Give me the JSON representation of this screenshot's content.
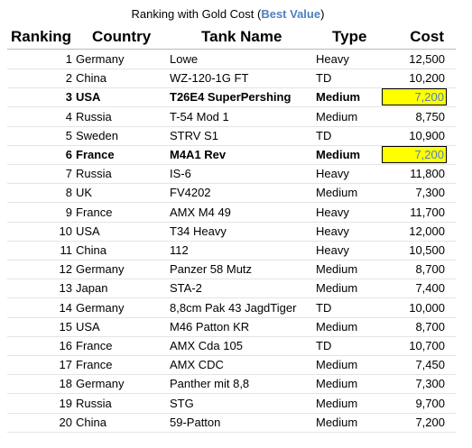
{
  "title": {
    "prefix": "Ranking with Gold Cost (",
    "highlight": "Best Value",
    "suffix": ")"
  },
  "header": [
    "Ranking",
    "Country",
    "Tank Name",
    "Type",
    "Cost"
  ],
  "rows": [
    {
      "rank": 1,
      "country": "Germany",
      "tank": "Lowe",
      "type": "Heavy",
      "cost": "12,500"
    },
    {
      "rank": 2,
      "country": "China",
      "tank": "WZ-120-1G FT",
      "type": "TD",
      "cost": "10,200"
    },
    {
      "rank": 3,
      "country": "USA",
      "tank": "T26E4 SuperPershing",
      "type": "Medium",
      "cost": "7,200",
      "best_value": true
    },
    {
      "rank": 4,
      "country": "Russia",
      "tank": "T-54 Mod 1",
      "type": "Medium",
      "cost": "8,750"
    },
    {
      "rank": 5,
      "country": "Sweden",
      "tank": "STRV S1",
      "type": "TD",
      "cost": "10,900"
    },
    {
      "rank": 6,
      "country": "France",
      "tank": "M4A1 Rev",
      "type": "Medium",
      "cost": "7,200",
      "best_value": true
    },
    {
      "rank": 7,
      "country": "Russia",
      "tank": "IS-6",
      "type": "Heavy",
      "cost": "11,800"
    },
    {
      "rank": 8,
      "country": "UK",
      "tank": "FV4202",
      "type": "Medium",
      "cost": "7,300"
    },
    {
      "rank": 9,
      "country": "France",
      "tank": "AMX M4 49",
      "type": "Heavy",
      "cost": "11,700"
    },
    {
      "rank": 10,
      "country": "USA",
      "tank": "T34 Heavy",
      "type": "Heavy",
      "cost": "12,000"
    },
    {
      "rank": 11,
      "country": "China",
      "tank": "112",
      "type": "Heavy",
      "cost": "10,500"
    },
    {
      "rank": 12,
      "country": "Germany",
      "tank": "Panzer 58 Mutz",
      "type": "Medium",
      "cost": "8,700"
    },
    {
      "rank": 13,
      "country": "Japan",
      "tank": "STA-2",
      "type": "Medium",
      "cost": "7,400"
    },
    {
      "rank": 14,
      "country": "Germany",
      "tank": "8,8cm Pak 43 JagdTiger",
      "type": "TD",
      "cost": "10,000"
    },
    {
      "rank": 15,
      "country": "USA",
      "tank": "M46 Patton KR",
      "type": "Medium",
      "cost": "8,700"
    },
    {
      "rank": 16,
      "country": "France",
      "tank": "AMX Cda 105",
      "type": "TD",
      "cost": "10,700"
    },
    {
      "rank": 17,
      "country": "France",
      "tank": "AMX CDC",
      "type": "Medium",
      "cost": "7,450"
    },
    {
      "rank": 18,
      "country": "Germany",
      "tank": "Panther mit 8,8",
      "type": "Medium",
      "cost": "7,300"
    },
    {
      "rank": 19,
      "country": "Russia",
      "tank": "STG",
      "type": "Medium",
      "cost": "9,700"
    },
    {
      "rank": 20,
      "country": "China",
      "tank": "59-Patton",
      "type": "Medium",
      "cost": "7,200"
    }
  ]
}
